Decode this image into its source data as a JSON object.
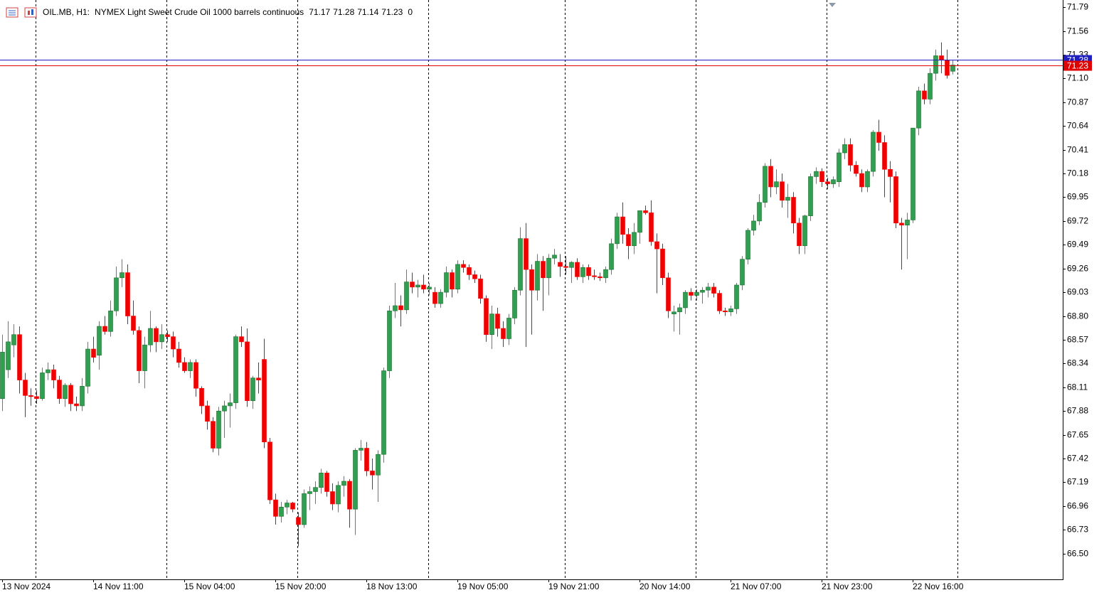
{
  "chart_data": {
    "type": "candlestick",
    "symbol": "OIL.MB, H1:",
    "description": "NYMEX Light Sweet Crude Oil 1000 barrels continuous",
    "spread": 0,
    "categories": [
      "13 Nov 2024",
      null,
      null,
      null,
      null,
      null,
      null,
      null,
      null,
      null,
      null,
      null,
      null,
      null,
      null,
      null,
      "14 Nov 11:00",
      null,
      null,
      null,
      null,
      null,
      null,
      null,
      null,
      null,
      null,
      null,
      null,
      null,
      null,
      null,
      "15 Nov 04:00",
      null,
      null,
      null,
      null,
      null,
      null,
      null,
      null,
      null,
      null,
      null,
      null,
      null,
      null,
      null,
      "15 Nov 20:00",
      null,
      null,
      null,
      null,
      null,
      null,
      null,
      null,
      null,
      null,
      null,
      null,
      null,
      null,
      null,
      "18 Nov 13:00",
      null,
      null,
      null,
      null,
      null,
      null,
      null,
      null,
      null,
      null,
      null,
      null,
      null,
      null,
      null,
      "19 Nov 05:00",
      null,
      null,
      null,
      null,
      null,
      null,
      null,
      null,
      null,
      null,
      null,
      null,
      null,
      null,
      null,
      "19 Nov 21:00",
      null,
      null,
      null,
      null,
      null,
      null,
      null,
      null,
      null,
      null,
      null,
      null,
      null,
      null,
      null,
      "20 Nov 14:00",
      null,
      null,
      null,
      null,
      null,
      null,
      null,
      null,
      null,
      null,
      null,
      null,
      null,
      null,
      null,
      "21 Nov 07:00",
      null,
      null,
      null,
      null,
      null,
      null,
      null,
      null,
      null,
      null,
      null,
      null,
      null,
      null,
      null,
      "21 Nov 23:00",
      null,
      null,
      null,
      null,
      null,
      null,
      null,
      null,
      null,
      null,
      null,
      null,
      null,
      null,
      null,
      "22 Nov 16:00",
      null,
      null,
      null,
      null,
      null,
      null,
      null
    ],
    "open": [
      68.0,
      68.28,
      68.52,
      68.62,
      68.18,
      68.03,
      68.02,
      68.0,
      68.25,
      68.28,
      68.18,
      68.0,
      68.13,
      67.95,
      67.93,
      68.12,
      68.48,
      68.42,
      68.7,
      68.65,
      68.85,
      69.17,
      69.22,
      68.8,
      68.66,
      68.27,
      68.52,
      68.68,
      68.55,
      68.62,
      68.6,
      68.48,
      68.35,
      68.27,
      68.35,
      68.1,
      67.93,
      67.78,
      67.52,
      67.88,
      67.93,
      67.96,
      68.6,
      68.55,
      67.98,
      68.2,
      68.38,
      67.58,
      67.02,
      66.86,
      66.95,
      66.99,
      66.85,
      66.78,
      67.08,
      67.1,
      67.14,
      67.28,
      67.1,
      66.98,
      67.16,
      67.2,
      66.93,
      67.5,
      67.52,
      67.3,
      67.26,
      67.46,
      68.27,
      68.85,
      68.9,
      68.86,
      69.13,
      69.08,
      69.1,
      69.06,
      69.03,
      68.92,
      69.03,
      69.22,
      69.06,
      69.3,
      69.27,
      69.2,
      69.16,
      68.97,
      68.62,
      68.82,
      68.68,
      68.58,
      68.78,
      69.05,
      69.55,
      69.25,
      69.05,
      69.33,
      69.17,
      69.36,
      69.32,
      69.28,
      69.27,
      69.32,
      69.18,
      69.27,
      69.19,
      69.18,
      69.17,
      69.25,
      69.5,
      69.76,
      69.59,
      69.48,
      69.61,
      69.82,
      69.8,
      69.52,
      69.45,
      69.17,
      68.82,
      68.84,
      68.88,
      69.03,
      69.0,
      69.03,
      69.05,
      69.08,
      69.02,
      68.85,
      68.84,
      68.87,
      69.1,
      69.35,
      69.63,
      69.72,
      69.9,
      70.25,
      70.05,
      70.1,
      69.92,
      69.95,
      69.7,
      69.48,
      69.77,
      70.15,
      70.2,
      70.1,
      70.08,
      70.1,
      70.38,
      70.46,
      70.26,
      70.18,
      70.05,
      70.2,
      70.58,
      70.48,
      70.22,
      70.15,
      69.7,
      69.68,
      69.73,
      70.62,
      70.98,
      70.9,
      71.15,
      71.32,
      71.28,
      71.17
    ],
    "high": [
      68.62,
      68.75,
      68.72,
      68.7,
      68.25,
      68.1,
      68.08,
      68.3,
      68.35,
      68.33,
      68.22,
      68.15,
      68.15,
      68.02,
      68.2,
      68.55,
      68.6,
      68.75,
      68.8,
      68.95,
      69.28,
      69.35,
      69.3,
      68.95,
      68.7,
      68.6,
      68.85,
      68.7,
      68.72,
      68.66,
      68.65,
      68.55,
      68.4,
      68.38,
      68.38,
      68.12,
      67.98,
      67.82,
      67.92,
      67.98,
      68.05,
      68.62,
      68.7,
      68.68,
      68.22,
      68.35,
      68.58,
      67.62,
      67.08,
      67.0,
      67.02,
      67.0,
      66.9,
      67.12,
      67.15,
      67.2,
      67.32,
      67.3,
      67.18,
      67.2,
      67.25,
      67.22,
      67.52,
      67.6,
      67.58,
      67.42,
      67.5,
      68.3,
      68.9,
      69.12,
      69.0,
      69.25,
      69.22,
      69.15,
      69.2,
      69.12,
      69.08,
      69.06,
      69.28,
      69.25,
      69.34,
      69.34,
      69.3,
      69.24,
      69.2,
      69.0,
      68.9,
      68.88,
      68.75,
      68.82,
      69.08,
      69.66,
      69.7,
      69.3,
      69.4,
      69.38,
      69.4,
      69.45,
      69.4,
      69.38,
      69.33,
      69.36,
      69.3,
      69.3,
      69.25,
      69.22,
      69.28,
      69.55,
      69.8,
      69.9,
      69.65,
      69.7,
      69.82,
      69.87,
      69.92,
      69.6,
      69.5,
      69.22,
      68.9,
      68.92,
      69.05,
      69.07,
      69.06,
      69.08,
      69.12,
      69.12,
      69.05,
      68.88,
      68.9,
      69.12,
      69.38,
      69.65,
      69.78,
      69.98,
      70.28,
      70.32,
      70.22,
      70.18,
      70.08,
      70.0,
      69.75,
      69.78,
      70.18,
      70.24,
      70.23,
      70.14,
      70.15,
      70.42,
      70.52,
      70.52,
      70.3,
      70.22,
      70.22,
      70.6,
      70.7,
      70.55,
      70.3,
      70.2,
      69.75,
      69.8,
      70.62,
      71.02,
      71.05,
      71.2,
      71.38,
      71.45,
      71.38,
      71.28
    ],
    "low": [
      67.88,
      68.2,
      68.4,
      68.05,
      67.82,
      67.93,
      67.95,
      67.98,
      68.18,
      68.1,
      67.95,
      67.92,
      67.88,
      67.88,
      67.88,
      68.05,
      68.35,
      68.28,
      68.62,
      68.6,
      68.8,
      69.08,
      68.72,
      68.62,
      68.15,
      68.1,
      68.45,
      68.45,
      68.48,
      68.55,
      68.4,
      68.3,
      68.25,
      68.2,
      68.02,
      67.85,
      67.7,
      67.48,
      67.45,
      67.62,
      67.72,
      67.9,
      68.5,
      67.92,
      67.9,
      68.05,
      67.52,
      66.98,
      66.78,
      66.8,
      66.88,
      66.9,
      66.57,
      66.75,
      66.92,
      66.98,
      67.08,
      67.05,
      66.92,
      66.9,
      67.05,
      66.75,
      66.68,
      67.4,
      67.25,
      67.12,
      67.0,
      67.38,
      68.2,
      68.78,
      68.7,
      68.82,
      69.02,
      68.98,
      69.02,
      69.0,
      68.88,
      68.88,
      68.98,
      68.98,
      69.02,
      69.22,
      69.15,
      69.12,
      68.92,
      68.55,
      68.48,
      68.6,
      68.5,
      68.52,
      68.72,
      69.0,
      68.5,
      68.62,
      68.95,
      68.85,
      69.0,
      69.3,
      69.18,
      69.2,
      69.12,
      69.15,
      69.12,
      69.15,
      69.15,
      69.14,
      69.12,
      69.2,
      69.45,
      69.5,
      69.35,
      69.4,
      69.5,
      69.78,
      69.48,
      69.02,
      69.1,
      68.78,
      68.65,
      68.62,
      68.82,
      68.95,
      68.95,
      68.92,
      68.98,
      68.98,
      68.82,
      68.8,
      68.8,
      68.82,
      69.05,
      69.3,
      69.58,
      69.68,
      69.85,
      69.95,
      69.98,
      69.85,
      69.75,
      69.6,
      69.4,
      69.4,
      69.72,
      70.08,
      70.05,
      70.03,
      70.04,
      70.05,
      70.32,
      70.2,
      70.15,
      70.0,
      70.0,
      70.15,
      70.4,
      69.95,
      69.9,
      69.65,
      69.25,
      69.35,
      69.7,
      70.55,
      70.85,
      70.85,
      71.08,
      71.15,
      71.1,
      71.14
    ],
    "close": [
      68.45,
      68.55,
      68.62,
      68.18,
      68.03,
      68.02,
      68.0,
      68.25,
      68.28,
      68.18,
      68.0,
      68.13,
      67.95,
      67.93,
      68.12,
      68.48,
      68.4,
      68.7,
      68.65,
      68.85,
      69.17,
      69.22,
      68.8,
      68.66,
      68.27,
      68.52,
      68.68,
      68.55,
      68.62,
      68.6,
      68.48,
      68.35,
      68.27,
      68.35,
      68.1,
      67.93,
      67.78,
      67.52,
      67.88,
      67.93,
      67.96,
      68.6,
      68.55,
      67.98,
      68.2,
      68.18,
      67.58,
      67.02,
      66.86,
      66.95,
      66.99,
      66.93,
      66.78,
      67.08,
      67.1,
      67.14,
      67.28,
      67.1,
      66.98,
      67.16,
      67.2,
      66.93,
      67.5,
      67.52,
      67.3,
      67.26,
      67.46,
      68.27,
      68.85,
      68.9,
      68.86,
      69.13,
      69.08,
      69.1,
      69.06,
      69.08,
      68.92,
      69.03,
      69.22,
      69.06,
      69.3,
      69.27,
      69.2,
      69.16,
      68.97,
      68.62,
      68.82,
      68.68,
      68.58,
      68.78,
      69.05,
      69.55,
      69.25,
      69.05,
      69.33,
      69.17,
      69.36,
      69.39,
      69.28,
      69.27,
      69.32,
      69.18,
      69.27,
      69.19,
      69.18,
      69.17,
      69.25,
      69.5,
      69.76,
      69.59,
      69.48,
      69.61,
      69.82,
      69.8,
      69.52,
      69.45,
      69.17,
      68.85,
      68.84,
      68.88,
      69.03,
      69.0,
      69.03,
      69.05,
      69.08,
      69.02,
      68.85,
      68.84,
      68.87,
      69.1,
      69.35,
      69.63,
      69.72,
      69.9,
      70.25,
      70.05,
      70.1,
      69.92,
      69.95,
      69.7,
      69.48,
      69.77,
      70.15,
      70.2,
      70.1,
      70.08,
      70.12,
      70.38,
      70.46,
      70.26,
      70.18,
      70.05,
      70.2,
      70.58,
      70.48,
      70.22,
      70.15,
      69.7,
      69.68,
      69.73,
      70.62,
      70.98,
      70.9,
      71.15,
      71.32,
      71.28,
      71.13,
      71.23
    ],
    "up_color": "#2ea04f",
    "down_color": "#f00000",
    "ylim": [
      66.25,
      71.86
    ],
    "yticks": [
      71.79,
      71.56,
      71.33,
      {
        "value": 71.1,
        "label": "71.10"
      },
      70.87,
      70.64,
      70.41,
      70.18,
      69.95,
      69.72,
      69.49,
      69.26,
      69.03,
      {
        "value": 68.8,
        "label": "68.80"
      },
      68.57,
      68.34,
      68.11,
      67.88,
      67.65,
      67.42,
      67.19,
      66.96,
      66.73,
      {
        "value": 66.5,
        "label": "66.50"
      }
    ],
    "ask": 71.28,
    "ask_color": "#2020c0",
    "bid": 71.23,
    "bid_color": "#e00000"
  }
}
